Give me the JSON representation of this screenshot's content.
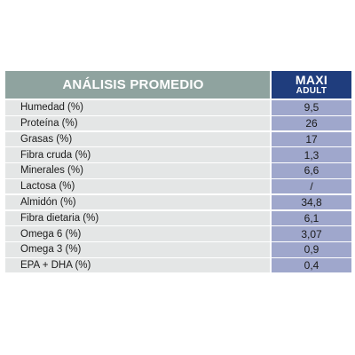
{
  "header": {
    "title": "ANÁLISIS PROMEDIO",
    "product_line1": "MAXI",
    "product_line2": "ADULT"
  },
  "rows": [
    {
      "label": "Humedad (%)",
      "value": "9,5"
    },
    {
      "label": "Proteína (%)",
      "value": "26"
    },
    {
      "label": "Grasas (%)",
      "value": "17"
    },
    {
      "label": "Fibra cruda (%)",
      "value": "1,3"
    },
    {
      "label": "Minerales (%)",
      "value": "6,6"
    },
    {
      "label": "Lactosa (%)",
      "value": "/"
    },
    {
      "label": "Almidón (%)",
      "value": "34,8"
    },
    {
      "label": "Fibra dietaria (%)",
      "value": "6,1"
    },
    {
      "label": "Omega 6 (%)",
      "value": "3,07"
    },
    {
      "label": "Omega 3 (%)",
      "value": "0,9"
    },
    {
      "label": "EPA + DHA (%)",
      "value": "0,4"
    }
  ],
  "colors": {
    "header_left": "#8fa39f",
    "header_right": "#1f3d7d",
    "label_cell": "#e4e6e6",
    "value_cell": "#9fa7cc"
  }
}
